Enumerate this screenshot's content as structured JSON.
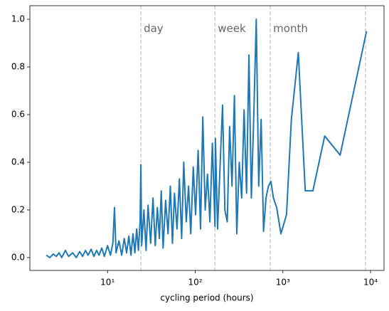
{
  "chart_data": {
    "type": "line",
    "x_label": "cycling period (hours)",
    "xscale": "log",
    "xlim": [
      1.3,
      14250
    ],
    "xticks": [
      {
        "value": 10,
        "label": "10¹"
      },
      {
        "value": 100,
        "label": "10²"
      },
      {
        "value": 1000,
        "label": "10³"
      },
      {
        "value": 10000,
        "label": "10⁴"
      }
    ],
    "ylim": [
      -0.054,
      1.057
    ],
    "yticks": [
      {
        "value": 0,
        "label": "0.0"
      },
      0.2,
      0.4,
      0.6,
      0.8,
      {
        "value": 1,
        "label": "1.0"
      }
    ],
    "vlines": [
      24,
      168,
      720,
      8760
    ],
    "vline_color": "#cccccc",
    "annotations": [
      {
        "text": "day",
        "x": 24,
        "y": 0.96
      },
      {
        "text": "week",
        "x": 168,
        "y": 0.96
      },
      {
        "text": "month",
        "x": 720,
        "y": 0.96
      }
    ],
    "series": [
      {
        "color": "#1f77b4",
        "x": [
          2,
          2.2,
          2.4,
          2.6,
          2.8,
          3,
          3.3,
          3.6,
          4,
          4.4,
          4.8,
          5.2,
          5.6,
          6,
          6.5,
          7,
          7.5,
          8,
          8.6,
          9.2,
          10,
          10.8,
          11.5,
          12,
          12.5,
          13.5,
          14.5,
          15.5,
          16.5,
          17.5,
          18.5,
          19.5,
          20.5,
          21.5,
          22.5,
          23.5,
          24,
          24.5,
          26,
          27.5,
          29,
          31,
          33,
          35,
          37,
          39,
          41,
          43,
          46,
          49,
          52,
          55,
          58,
          62,
          66,
          70,
          74,
          79,
          84,
          89,
          95,
          101,
          108,
          115,
          122,
          130,
          138,
          147,
          157,
          168,
          170,
          180,
          192,
          205,
          218,
          232,
          247,
          263,
          280,
          298,
          318,
          339,
          361,
          385,
          410,
          437,
          466,
          497,
          530,
          565,
          602,
          642,
          685,
          730,
          780,
          850,
          950,
          1100,
          1250,
          1500,
          1800,
          2200,
          3000,
          4500,
          9000
        ],
        "values": [
          0.01,
          0.0,
          0.015,
          0.005,
          0.02,
          0.0,
          0.03,
          0.005,
          0.02,
          0.0,
          0.025,
          0.005,
          0.03,
          0.01,
          0.035,
          0.005,
          0.03,
          0.01,
          0.04,
          0.005,
          0.05,
          0.01,
          0.06,
          0.21,
          0.02,
          0.07,
          0.01,
          0.08,
          0.02,
          0.09,
          0.01,
          0.1,
          0.02,
          0.12,
          0.03,
          0.15,
          0.39,
          0.05,
          0.2,
          0.03,
          0.22,
          0.06,
          0.25,
          0.05,
          0.21,
          0.08,
          0.28,
          0.04,
          0.24,
          0.1,
          0.3,
          0.06,
          0.27,
          0.12,
          0.33,
          0.08,
          0.4,
          0.15,
          0.3,
          0.1,
          0.38,
          0.18,
          0.45,
          0.12,
          0.59,
          0.2,
          0.35,
          0.15,
          0.48,
          0.13,
          0.5,
          0.12,
          0.38,
          0.64,
          0.2,
          0.15,
          0.55,
          0.3,
          0.68,
          0.1,
          0.4,
          0.25,
          0.62,
          0.27,
          0.85,
          0.25,
          0.6,
          1.0,
          0.3,
          0.58,
          0.11,
          0.25,
          0.3,
          0.32,
          0.25,
          0.21,
          0.1,
          0.18,
          0.58,
          0.86,
          0.28,
          0.28,
          0.51,
          0.43,
          0.95
        ]
      }
    ]
  }
}
